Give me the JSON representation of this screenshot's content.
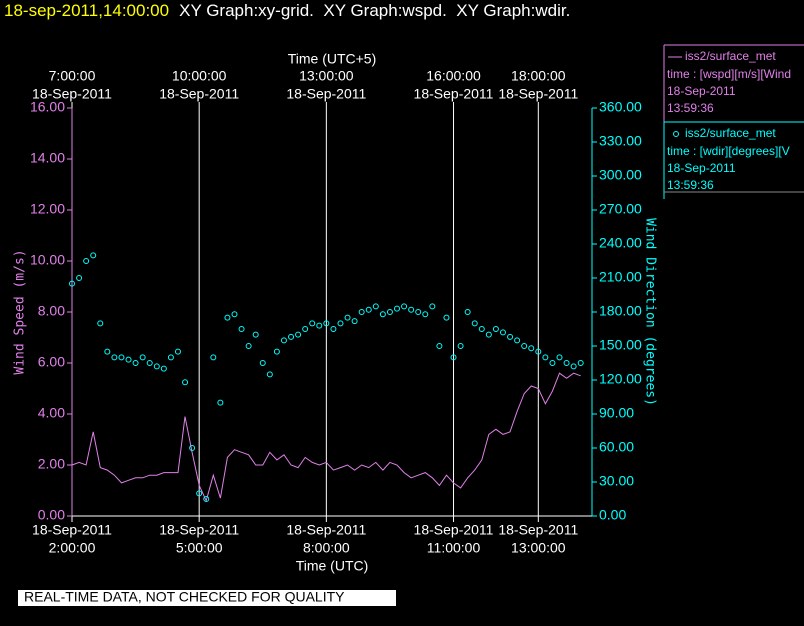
{
  "chart_data": {
    "type": "line",
    "title_date": "18-sep-2011,14:00:00",
    "title": "XY Graph:xy-grid.  XY Graph:wspd.  XY Graph:wdir.",
    "xlabel": "Time (UTC)",
    "x2label": "Time (UTC+5)",
    "ylabel": "Wind Speed (m/s)",
    "y2label": "Wind Direction (degrees)",
    "footer": "REAL-TIME DATA, NOT CHECKED FOR QUALITY",
    "xlim": [
      "2011-09-18T02:00Z",
      "2011-09-18T14:16Z"
    ],
    "xticks": [
      {
        "value": "2011-09-18T02:00Z",
        "label": [
          "18-Sep-2011",
          "2:00:00"
        ]
      },
      {
        "value": "2011-09-18T05:00Z",
        "label": [
          "18-Sep-2011",
          "5:00:00"
        ]
      },
      {
        "value": "2011-09-18T08:00Z",
        "label": [
          "18-Sep-2011",
          "8:00:00"
        ]
      },
      {
        "value": "2011-09-18T11:00Z",
        "label": [
          "18-Sep-2011",
          "11:00:00"
        ]
      },
      {
        "value": "2011-09-18T13:00Z",
        "label": [
          "18-Sep-2011",
          "13:00:00"
        ]
      }
    ],
    "x2ticks": [
      {
        "value": "2011-09-18T07:00+05:00",
        "label": [
          "7:00:00",
          "18-Sep-2011"
        ]
      },
      {
        "value": "2011-09-18T10:00+05:00",
        "label": [
          "10:00:00",
          "18-Sep-2011"
        ]
      },
      {
        "value": "2011-09-18T13:00+05:00",
        "label": [
          "13:00:00",
          "18-Sep-2011"
        ]
      },
      {
        "value": "2011-09-18T16:00+05:00",
        "label": [
          "16:00:00",
          "18-Sep-2011"
        ]
      },
      {
        "value": "2011-09-18T18:00+05:00",
        "label": [
          "18:00:00",
          "18-Sep-2011"
        ]
      }
    ],
    "ylim": [
      0,
      16
    ],
    "yticks": [
      {
        "value": 0,
        "label": "0.00"
      },
      {
        "value": 2,
        "label": "2.00"
      },
      {
        "value": 4,
        "label": "4.00"
      },
      {
        "value": 6,
        "label": "6.00"
      },
      {
        "value": 8,
        "label": "8.00"
      },
      {
        "value": 10,
        "label": "10.00"
      },
      {
        "value": 12,
        "label": "12.00"
      },
      {
        "value": 14,
        "label": "14.00"
      },
      {
        "value": 16,
        "label": "16.00"
      }
    ],
    "y2lim": [
      0,
      360
    ],
    "y2ticks": [
      {
        "value": 0,
        "label": "0.00"
      },
      {
        "value": 30,
        "label": "30.00"
      },
      {
        "value": 60,
        "label": "60.00"
      },
      {
        "value": 90,
        "label": "90.00"
      },
      {
        "value": 120,
        "label": "120.00"
      },
      {
        "value": 150,
        "label": "150.00"
      },
      {
        "value": 180,
        "label": "180.00"
      },
      {
        "value": 210,
        "label": "210.00"
      },
      {
        "value": 240,
        "label": "240.00"
      },
      {
        "value": 270,
        "label": "270.00"
      },
      {
        "value": 300,
        "label": "300.00"
      },
      {
        "value": 330,
        "label": "330.00"
      },
      {
        "value": 360,
        "label": "360.00"
      }
    ],
    "grid": true,
    "x": [
      "2011-09-18T02:00Z",
      "2011-09-18T02:10Z",
      "2011-09-18T02:20Z",
      "2011-09-18T02:30Z",
      "2011-09-18T02:40Z",
      "2011-09-18T02:50Z",
      "2011-09-18T03:00Z",
      "2011-09-18T03:10Z",
      "2011-09-18T03:20Z",
      "2011-09-18T03:30Z",
      "2011-09-18T03:40Z",
      "2011-09-18T03:50Z",
      "2011-09-18T04:00Z",
      "2011-09-18T04:10Z",
      "2011-09-18T04:20Z",
      "2011-09-18T04:30Z",
      "2011-09-18T04:40Z",
      "2011-09-18T04:50Z",
      "2011-09-18T05:00Z",
      "2011-09-18T05:10Z",
      "2011-09-18T05:20Z",
      "2011-09-18T05:30Z",
      "2011-09-18T05:40Z",
      "2011-09-18T05:50Z",
      "2011-09-18T06:00Z",
      "2011-09-18T06:10Z",
      "2011-09-18T06:20Z",
      "2011-09-18T06:30Z",
      "2011-09-18T06:40Z",
      "2011-09-18T06:50Z",
      "2011-09-18T07:00Z",
      "2011-09-18T07:10Z",
      "2011-09-18T07:20Z",
      "2011-09-18T07:30Z",
      "2011-09-18T07:40Z",
      "2011-09-18T07:50Z",
      "2011-09-18T08:00Z",
      "2011-09-18T08:10Z",
      "2011-09-18T08:20Z",
      "2011-09-18T08:30Z",
      "2011-09-18T08:40Z",
      "2011-09-18T08:50Z",
      "2011-09-18T09:00Z",
      "2011-09-18T09:10Z",
      "2011-09-18T09:20Z",
      "2011-09-18T09:30Z",
      "2011-09-18T09:40Z",
      "2011-09-18T09:50Z",
      "2011-09-18T10:00Z",
      "2011-09-18T10:10Z",
      "2011-09-18T10:20Z",
      "2011-09-18T10:30Z",
      "2011-09-18T10:40Z",
      "2011-09-18T10:50Z",
      "2011-09-18T11:00Z",
      "2011-09-18T11:10Z",
      "2011-09-18T11:20Z",
      "2011-09-18T11:30Z",
      "2011-09-18T11:40Z",
      "2011-09-18T11:50Z",
      "2011-09-18T12:00Z",
      "2011-09-18T12:10Z",
      "2011-09-18T12:20Z",
      "2011-09-18T12:30Z",
      "2011-09-18T12:40Z",
      "2011-09-18T12:50Z",
      "2011-09-18T13:00Z",
      "2011-09-18T13:10Z",
      "2011-09-18T13:20Z",
      "2011-09-18T13:30Z",
      "2011-09-18T13:40Z",
      "2011-09-18T13:50Z",
      "2011-09-18T14:00Z"
    ],
    "series": [
      {
        "name": "iss2/surface_met",
        "info": [
          "time : [wspd][m/s][Wind",
          "18-Sep-2011",
          "13:59:36"
        ],
        "color": "#e080e8",
        "style": "line",
        "values": [
          2.0,
          2.1,
          2.0,
          3.3,
          1.9,
          1.8,
          1.6,
          1.3,
          1.4,
          1.5,
          1.5,
          1.6,
          1.6,
          1.7,
          1.7,
          1.7,
          3.9,
          2.5,
          1.2,
          0.6,
          1.6,
          0.7,
          2.3,
          2.6,
          2.5,
          2.4,
          2.0,
          2.0,
          2.5,
          2.2,
          2.4,
          2.0,
          1.9,
          2.3,
          2.1,
          2.0,
          2.1,
          1.8,
          1.9,
          2.0,
          1.8,
          2.0,
          1.9,
          2.1,
          1.8,
          2.1,
          2.0,
          1.7,
          1.5,
          1.6,
          1.7,
          1.5,
          1.2,
          1.6,
          1.3,
          1.1,
          1.5,
          1.8,
          2.2,
          3.2,
          3.4,
          3.2,
          3.3,
          4.1,
          4.8,
          5.1,
          5.0,
          4.4,
          4.9,
          5.6,
          5.4,
          5.6,
          5.5
        ]
      },
      {
        "name": "iss2/surface_met",
        "info": [
          "time : [wdir][degrees][V",
          "18-Sep-2011",
          "13:59:36"
        ],
        "color": "#00ffff",
        "style": "circle",
        "axis": "y2",
        "values": [
          205,
          210,
          225,
          230,
          170,
          145,
          140,
          140,
          138,
          135,
          140,
          135,
          132,
          130,
          140,
          145,
          118,
          60,
          20,
          15,
          140,
          100,
          175,
          178,
          165,
          150,
          160,
          135,
          125,
          145,
          155,
          158,
          160,
          165,
          170,
          168,
          170,
          165,
          170,
          175,
          172,
          180,
          182,
          185,
          178,
          180,
          183,
          185,
          182,
          180,
          178,
          185,
          150,
          175,
          140,
          150,
          180,
          170,
          165,
          160,
          165,
          162,
          158,
          155,
          150,
          148,
          145,
          140,
          135,
          140,
          135,
          132,
          135
        ]
      }
    ]
  }
}
